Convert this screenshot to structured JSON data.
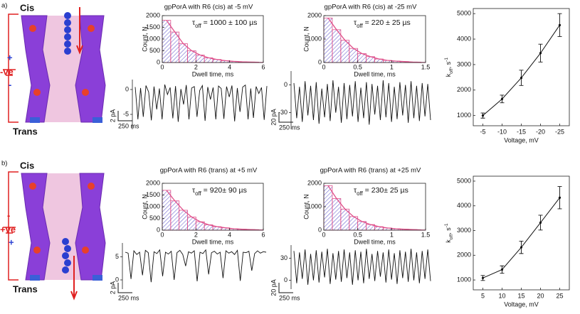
{
  "panel_labels": [
    "a)",
    "b)"
  ],
  "illustrations": [
    {
      "cis": "Cis",
      "trans": "Trans",
      "polarity": "-ve",
      "upper_sign": "+",
      "lower_sign": "-"
    },
    {
      "cis": "Cis",
      "trans": "Trans",
      "polarity": "+ve",
      "upper_sign": "-",
      "lower_sign": "+"
    }
  ],
  "chart_data": [
    {
      "type": "histogram",
      "title": "gpPorA with R6 (cis) at -5 mV",
      "bins": [
        0,
        0.5,
        1,
        1.5,
        2,
        2.5,
        3,
        3.5,
        4,
        4.5,
        5,
        5.5,
        6
      ],
      "values": [
        1800,
        1300,
        800,
        500,
        320,
        200,
        130,
        80,
        50,
        30,
        20,
        10
      ],
      "xlim": [
        0,
        6
      ],
      "xticks": [
        0,
        2,
        4,
        6
      ],
      "ylim": [
        0,
        2000
      ],
      "yticks": [
        0,
        500,
        1000,
        1500,
        2000
      ],
      "xlabel": "Dwell time, ms",
      "ylabel": "Count, N",
      "annotation": {
        "symbol": "τ",
        "subscript": "off",
        "text": " = 1000 ± 100 µs"
      },
      "color": "#5a4fc9",
      "edge_color": "#e0508a"
    },
    {
      "type": "histogram",
      "title": "gpPorA with R6 (cis) at -25 mV",
      "bins": [
        0,
        0.125,
        0.25,
        0.375,
        0.5,
        0.625,
        0.75,
        0.875,
        1,
        1.125,
        1.25,
        1.375,
        1.5
      ],
      "values": [
        1900,
        1400,
        950,
        600,
        380,
        250,
        150,
        90,
        60,
        40,
        20,
        10
      ],
      "xlim": [
        0,
        1.5
      ],
      "xticks": [
        0,
        0.5,
        1,
        1.5
      ],
      "ylim": [
        0,
        2000
      ],
      "yticks": [
        0,
        1000,
        2000
      ],
      "xlabel": "Dwell time, ms",
      "ylabel": "Count, N",
      "annotation": {
        "symbol": "τ",
        "subscript": "off",
        "text": " = 220  ± 25 µs"
      },
      "color": "#5a4fc9",
      "edge_color": "#e0508a"
    },
    {
      "type": "trace",
      "ylim": [
        -8,
        2
      ],
      "yticks": [
        0,
        -5
      ],
      "scale_y": "2 pA",
      "scale_x": "250 ms",
      "color": "#111",
      "values": [
        0.5,
        -6,
        0.3,
        -5.5,
        0.8,
        -0.5,
        -6.2,
        0.6,
        -4,
        0.2,
        -6,
        1,
        -1,
        0.4,
        -5.8,
        0.7,
        -6.5,
        0.1,
        -3,
        0.9,
        -6,
        0.3,
        0.6,
        -5.5,
        -0.2,
        0.8,
        -6.3,
        0.5,
        -2,
        0.4,
        -6,
        0.7,
        0.2,
        -5.9,
        0.6,
        -1.5,
        0.8,
        -6.4,
        0.3,
        -4.5,
        0.5,
        0.9,
        -6,
        0.2,
        -5.7,
        0.6,
        -0.8,
        0.4,
        -6.1,
        0.7
      ]
    },
    {
      "type": "trace",
      "ylim": [
        -48,
        15
      ],
      "yticks": [
        0,
        -30
      ],
      "scale_y": "20 pA",
      "scale_x": "250 ms",
      "color": "#111",
      "values": [
        2,
        -36,
        -2,
        -40,
        4,
        -33,
        -1,
        -38,
        3,
        -42,
        -4,
        -35,
        1,
        -39,
        5,
        -30,
        -2,
        -41,
        2,
        -37,
        0,
        -34,
        4,
        -40,
        -3,
        -36,
        3,
        -43,
        1,
        -32,
        -1,
        -38,
        5,
        -35,
        2,
        -40,
        -2,
        -37,
        3,
        -33,
        0,
        -41,
        4,
        -36,
        -1,
        -39,
        2,
        -34,
        1,
        -38
      ]
    },
    {
      "type": "line",
      "categories": [
        "-5",
        "-10",
        "-15",
        "-20",
        "-25"
      ],
      "values": [
        1000,
        1650,
        2480,
        3450,
        4550
      ],
      "errors": [
        100,
        150,
        300,
        350,
        450
      ],
      "ylim": [
        600,
        5200
      ],
      "yticks": [
        1000,
        2000,
        3000,
        4000,
        5000
      ],
      "xlabel": "Voltage, mV",
      "ylabel": {
        "main": "k",
        "subscript": "off",
        "text": ", s",
        "superscript": "-1"
      },
      "color": "#111"
    },
    {
      "type": "histogram",
      "title": "gpPorA with R6 (trans) at +5 mV",
      "bins": [
        0,
        0.5,
        1,
        1.5,
        2,
        2.5,
        3,
        3.5,
        4,
        4.5,
        5,
        5.5,
        6
      ],
      "values": [
        1700,
        1250,
        850,
        560,
        360,
        230,
        150,
        100,
        60,
        40,
        25,
        15
      ],
      "xlim": [
        0,
        6
      ],
      "xticks": [
        0,
        2,
        4,
        6
      ],
      "ylim": [
        0,
        2000
      ],
      "yticks": [
        0,
        500,
        1000,
        1500,
        2000
      ],
      "xlabel": "Dwell time, ms",
      "ylabel": "Count, N",
      "annotation": {
        "symbol": "τ",
        "subscript": "off",
        "text": " = 920± 90 µs"
      },
      "color": "#5a4fc9",
      "edge_color": "#e0508a"
    },
    {
      "type": "histogram",
      "title": "gpPorA with R6 (trans) at +25 mV",
      "bins": [
        0,
        0.125,
        0.25,
        0.375,
        0.5,
        0.625,
        0.75,
        0.875,
        1,
        1.125,
        1.25,
        1.375,
        1.5
      ],
      "values": [
        1900,
        1350,
        900,
        580,
        370,
        240,
        150,
        95,
        60,
        40,
        25,
        12
      ],
      "xlim": [
        0,
        1.5
      ],
      "xticks": [
        0,
        0.5,
        1,
        1.5
      ],
      "ylim": [
        0,
        2000
      ],
      "yticks": [
        0,
        1000,
        2000
      ],
      "xlabel": "Dwell time, ms",
      "ylabel": "Count, N",
      "annotation": {
        "symbol": "τ",
        "subscript": "off",
        "text": " = 230± 25 µs"
      },
      "color": "#5a4fc9",
      "edge_color": "#e0508a"
    },
    {
      "type": "trace",
      "ylim": [
        -2,
        8
      ],
      "yticks": [
        0,
        5
      ],
      "scale_y": "2 pA",
      "scale_x": "250 ms",
      "color": "#111",
      "values": [
        6,
        5.8,
        0.2,
        6.3,
        5.5,
        6,
        1,
        6.4,
        5.9,
        -0.5,
        6.1,
        5.7,
        6.5,
        0.8,
        6,
        5.6,
        6.2,
        0,
        5.9,
        6.4,
        5.5,
        3,
        6.1,
        5.8,
        6.3,
        -0.3,
        6,
        5.7,
        6.5,
        1.2,
        5.9,
        6.2,
        5.6,
        6,
        0.4,
        6.3,
        5.8,
        6.1,
        5.5,
        6.4,
        -0.2,
        6,
        5.9,
        6.2,
        2,
        5.7,
        6.3,
        5.8,
        6.1,
        6
      ]
    },
    {
      "type": "trace",
      "ylim": [
        -12,
        48
      ],
      "yticks": [
        0,
        30
      ],
      "scale_y": "20 pA",
      "scale_x": "250 ms",
      "color": "#111",
      "values": [
        40,
        -4,
        38,
        2,
        42,
        -6,
        36,
        0,
        41,
        -3,
        39,
        4,
        43,
        -5,
        37,
        1,
        40,
        -2,
        42,
        3,
        38,
        -6,
        41,
        0,
        39,
        -4,
        43,
        2,
        36,
        -1,
        40,
        5,
        38,
        -3,
        42,
        1,
        37,
        -5,
        41,
        3,
        39,
        -2,
        43,
        0,
        38,
        -4,
        40,
        2,
        42,
        -1
      ]
    },
    {
      "type": "line",
      "categories": [
        "5",
        "10",
        "15",
        "20",
        "25"
      ],
      "values": [
        1080,
        1420,
        2320,
        3320,
        4330
      ],
      "errors": [
        100,
        150,
        250,
        300,
        450
      ],
      "ylim": [
        600,
        5200
      ],
      "yticks": [
        1000,
        2000,
        3000,
        4000,
        5000
      ],
      "xlabel": "Voltage, mV",
      "ylabel": {
        "main": "k",
        "subscript": "off",
        "text": ", s",
        "superscript": "-1"
      },
      "color": "#111"
    }
  ]
}
